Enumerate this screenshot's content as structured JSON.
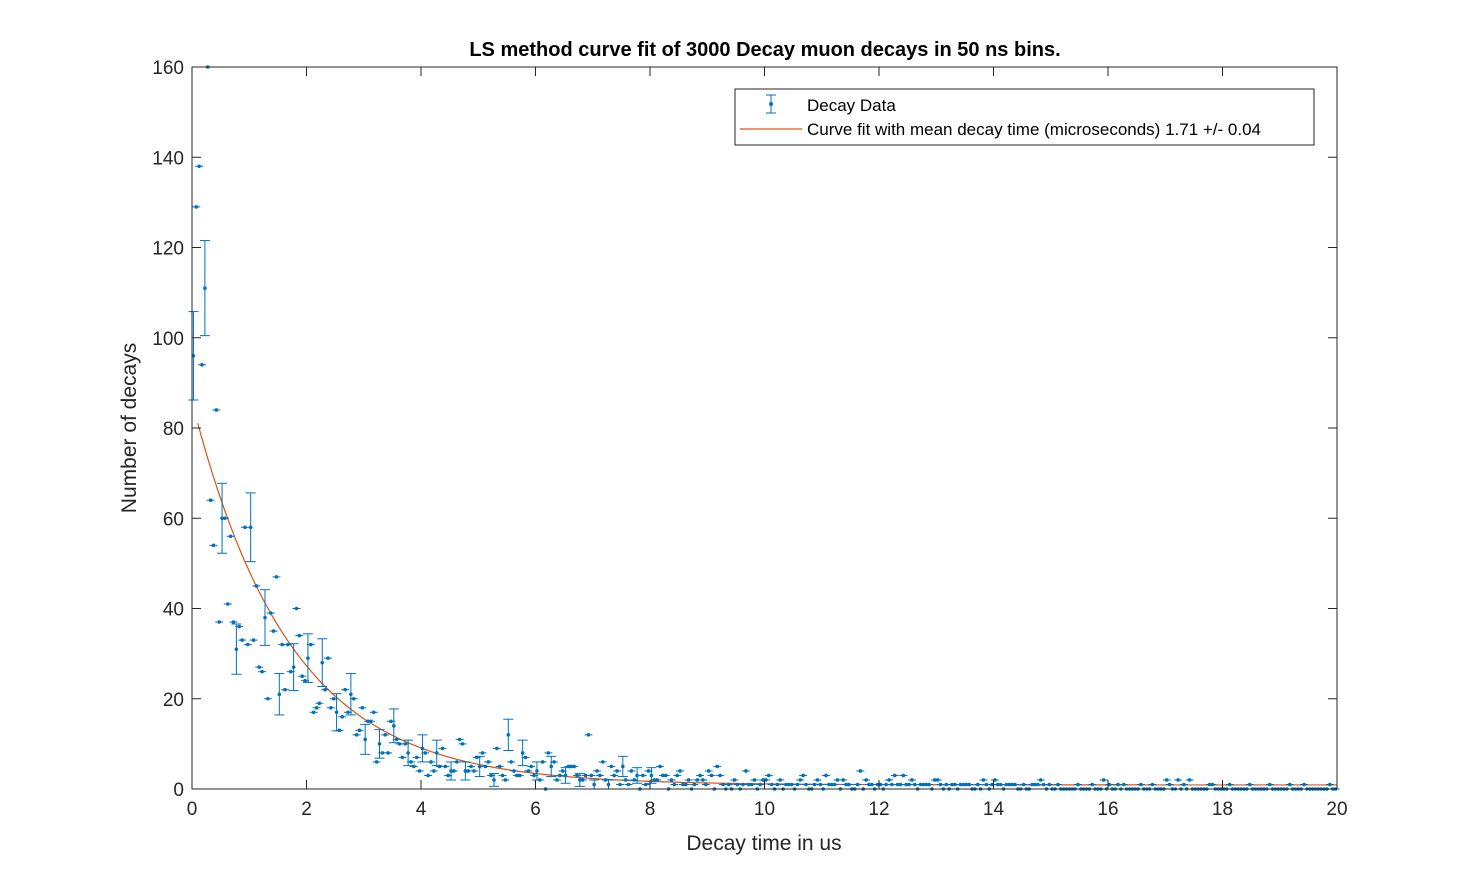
{
  "chart_data": {
    "type": "scatter",
    "title": "LS method curve fit of 3000 Decay muon decays in 50 ns bins.",
    "xlabel": "Decay time in us",
    "ylabel": "Number of decays",
    "xlim": [
      0,
      20
    ],
    "ylim": [
      0,
      160
    ],
    "xticks": [
      "0",
      "2",
      "4",
      "6",
      "8",
      "10",
      "12",
      "14",
      "16",
      "18",
      "20"
    ],
    "yticks": [
      "0",
      "20",
      "40",
      "60",
      "80",
      "100",
      "120",
      "140",
      "160"
    ],
    "grid": false,
    "legend_position": "top-right",
    "colors": {
      "data": "#0072BD",
      "fit": "#D95319",
      "axis": "#262626"
    },
    "series": [
      {
        "name": "Decay Data",
        "kind": "errorbar",
        "bin_width": 0.05,
        "x_start": 0.025,
        "values": [
          96,
          129,
          138,
          94,
          111,
          160,
          64,
          54,
          84,
          37,
          60,
          60,
          41,
          56,
          37,
          31,
          36,
          33,
          58,
          32,
          58,
          33,
          45,
          27,
          26,
          38,
          20,
          39,
          35,
          47,
          21,
          32,
          22,
          32,
          26,
          27,
          40,
          34,
          25,
          24,
          29,
          32,
          17,
          18,
          19,
          28,
          22,
          29,
          18,
          20,
          17,
          13,
          16,
          22,
          17,
          21,
          20,
          12,
          13,
          18,
          11,
          15,
          15,
          17,
          6,
          10,
          8,
          12,
          8,
          15,
          14,
          11,
          10,
          7,
          10,
          8,
          6,
          5,
          7,
          4,
          9,
          8,
          3,
          6,
          4,
          8,
          5,
          9,
          5,
          3,
          4,
          4,
          6,
          11,
          10,
          4,
          4,
          5,
          4,
          7,
          5,
          8,
          5,
          6,
          3,
          2,
          9,
          5,
          3,
          2,
          12,
          6,
          4,
          3,
          3,
          8,
          7,
          4,
          5,
          3,
          4,
          2,
          6,
          0,
          8,
          5,
          6,
          2,
          3,
          4,
          3,
          5,
          5,
          5,
          3,
          2,
          2,
          3,
          12,
          3,
          1,
          4,
          3,
          6,
          2,
          1,
          5,
          3,
          4,
          1,
          5,
          2,
          1,
          4,
          2,
          3,
          0,
          3,
          1,
          4,
          3,
          2,
          2,
          5,
          3,
          3,
          0,
          2,
          1,
          3,
          4,
          1,
          1,
          2,
          0,
          1,
          2,
          3,
          2,
          1,
          4,
          3,
          0,
          5,
          3,
          1,
          0,
          1,
          0,
          2,
          1,
          0,
          1,
          4,
          1,
          1,
          2,
          0,
          1,
          2,
          2,
          3,
          1,
          0,
          1,
          2,
          0,
          1,
          1,
          1,
          0,
          1,
          2,
          3,
          1,
          0,
          0,
          1,
          2,
          1,
          0,
          3,
          1,
          1,
          1,
          2,
          0,
          2,
          1,
          1,
          0,
          0,
          1,
          4,
          0,
          2,
          1,
          1,
          0,
          1,
          1,
          0,
          1,
          2,
          1,
          3,
          1,
          1,
          3,
          1,
          1,
          2,
          1,
          0,
          1,
          1,
          1,
          1,
          0,
          2,
          2,
          1,
          0,
          1,
          0,
          1,
          1,
          0,
          1,
          1,
          1,
          1,
          0,
          0,
          1,
          0,
          2,
          1,
          0,
          1,
          2,
          1,
          1,
          0,
          1,
          1,
          1,
          1,
          0,
          0,
          1,
          0,
          0,
          1,
          1,
          1,
          2,
          1,
          0,
          1,
          0,
          0,
          1,
          0,
          0,
          0,
          0,
          0,
          0,
          1,
          0,
          0,
          0,
          0,
          1,
          0,
          0,
          0,
          2,
          0,
          1,
          0,
          0,
          1,
          0,
          1,
          0,
          0,
          0,
          0,
          0,
          1,
          0,
          0,
          0,
          1,
          0,
          0,
          0,
          0,
          2,
          1,
          0,
          0,
          2,
          0,
          1,
          0,
          2,
          0,
          0,
          0,
          0,
          0,
          0,
          1,
          1,
          0,
          0,
          0,
          0,
          0,
          1,
          0,
          0,
          0,
          0,
          0,
          0,
          1,
          0,
          0,
          0,
          0,
          0,
          0,
          1,
          0,
          0,
          0,
          0,
          0,
          0,
          1,
          0,
          0,
          0,
          0,
          1,
          0,
          0,
          0,
          0,
          0,
          0,
          0,
          0,
          1,
          0,
          0,
          0,
          0,
          0,
          1,
          0,
          1,
          0,
          0,
          0,
          1,
          0,
          0,
          0,
          1,
          0,
          0,
          0,
          0,
          0,
          1,
          0,
          0,
          0,
          0,
          0,
          1,
          0,
          2,
          0,
          0,
          1,
          0,
          0,
          0,
          0,
          0,
          0,
          0,
          0,
          0,
          0,
          0,
          1,
          0,
          0,
          0,
          0,
          0,
          0,
          0,
          1,
          0,
          0,
          0,
          0,
          0,
          0,
          0,
          1,
          0,
          0,
          0,
          0,
          0,
          0,
          0,
          0,
          1,
          0,
          0,
          0,
          0,
          0,
          0,
          0,
          0,
          2,
          0,
          0,
          0,
          0,
          0,
          0,
          0,
          1,
          0,
          0,
          0,
          0,
          0,
          0,
          0,
          0,
          1,
          0,
          0,
          0,
          0,
          0,
          0,
          0,
          1,
          0,
          0,
          0,
          0,
          0,
          0,
          0,
          0,
          0,
          0,
          0,
          0,
          0,
          0,
          0,
          1,
          0,
          0,
          0,
          0,
          0,
          0,
          0,
          0,
          0,
          0,
          0,
          0,
          0,
          0,
          0,
          0,
          0,
          0,
          0,
          0,
          0,
          0,
          0,
          0,
          0,
          0,
          0,
          0,
          0,
          0,
          0,
          0,
          0,
          0,
          0,
          0,
          0,
          0,
          0,
          0,
          0,
          0,
          0,
          0,
          0,
          0,
          0,
          0,
          0,
          0,
          0,
          0,
          0,
          0,
          0,
          0,
          0,
          0,
          0,
          0,
          0,
          0,
          0,
          0,
          0,
          0,
          0,
          0,
          0,
          0,
          0,
          0,
          0,
          0,
          0,
          0,
          0,
          0,
          0,
          0,
          0,
          0,
          0,
          0,
          0,
          0,
          0,
          0,
          0,
          0,
          0,
          0,
          0,
          0,
          0,
          0,
          0,
          0,
          0,
          0,
          0,
          0,
          0,
          0,
          0,
          0,
          0,
          0,
          0,
          0,
          0,
          0,
          0,
          0,
          0,
          0,
          0,
          0,
          0,
          0,
          0,
          0,
          0,
          0,
          0
        ],
        "error_bars_at": [
          0,
          4,
          10,
          15,
          20,
          25,
          30,
          35,
          40,
          45,
          50,
          55,
          60,
          65,
          70,
          75,
          80,
          85,
          90,
          95,
          100,
          105,
          110,
          115,
          120,
          125,
          130,
          135,
          140,
          145,
          150,
          155,
          160
        ]
      },
      {
        "name": "Curve fit with mean decay time (microseconds) 1.71 +/- 0.04",
        "kind": "line",
        "model": {
          "amplitude": 85,
          "tau": 1.71,
          "offset": 0.9
        }
      }
    ]
  }
}
